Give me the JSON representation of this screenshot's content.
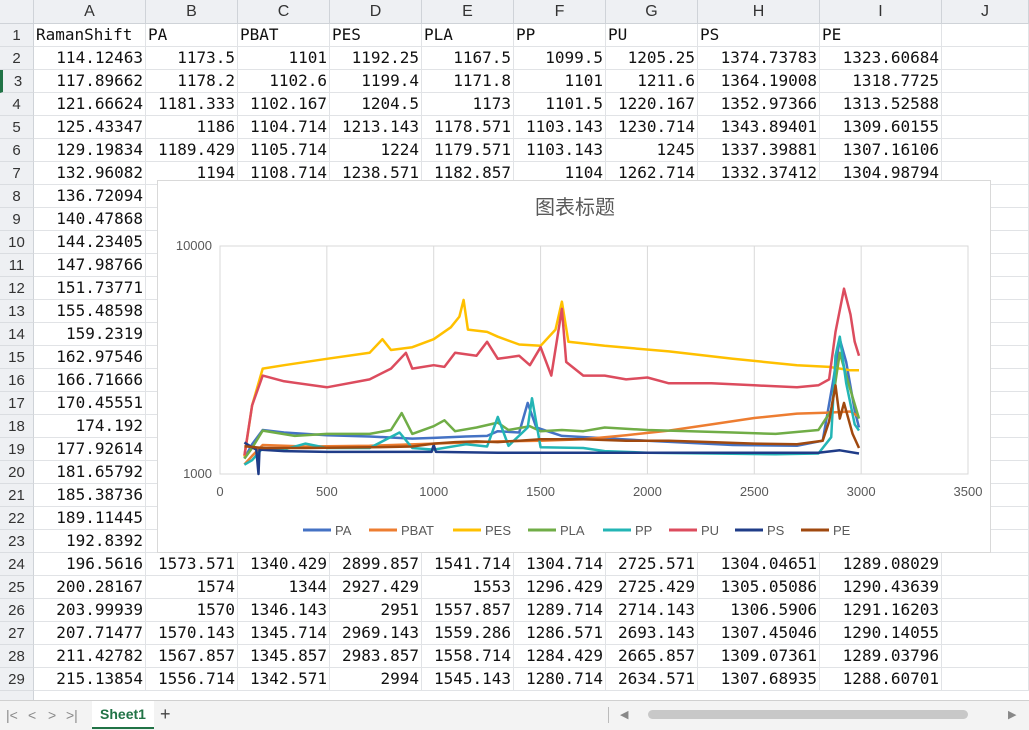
{
  "columns": [
    "A",
    "B",
    "C",
    "D",
    "E",
    "F",
    "G",
    "H",
    "I",
    "J"
  ],
  "header_row": [
    "RamanShift",
    "PA",
    "PBAT",
    "PES",
    "PLA",
    "PP",
    "PU",
    "PS",
    "PE"
  ],
  "rows": [
    {
      "n": "2",
      "v": [
        "114.12463",
        "1173.5",
        "1101",
        "1192.25",
        "1167.5",
        "1099.5",
        "1205.25",
        "1374.73783",
        "1323.60684"
      ]
    },
    {
      "n": "3",
      "v": [
        "117.89662",
        "1178.2",
        "1102.6",
        "1199.4",
        "1171.8",
        "1101",
        "1211.6",
        "1364.19008",
        "1318.7725"
      ]
    },
    {
      "n": "4",
      "v": [
        "121.66624",
        "1181.333",
        "1102.167",
        "1204.5",
        "1173",
        "1101.5",
        "1220.167",
        "1352.97366",
        "1313.52588"
      ]
    },
    {
      "n": "5",
      "v": [
        "125.43347",
        "1186",
        "1104.714",
        "1213.143",
        "1178.571",
        "1103.143",
        "1230.714",
        "1343.89401",
        "1309.60155"
      ]
    },
    {
      "n": "6",
      "v": [
        "129.19834",
        "1189.429",
        "1105.714",
        "1224",
        "1179.571",
        "1103.143",
        "1245",
        "1337.39881",
        "1307.16106"
      ]
    },
    {
      "n": "7",
      "v": [
        "132.96082",
        "1194",
        "1108.714",
        "1238.571",
        "1182.857",
        "1104",
        "1262.714",
        "1332.37412",
        "1304.98794"
      ]
    },
    {
      "n": "8",
      "v": [
        "136.72094"
      ]
    },
    {
      "n": "9",
      "v": [
        "140.47868"
      ]
    },
    {
      "n": "10",
      "v": [
        "144.23405"
      ]
    },
    {
      "n": "11",
      "v": [
        "147.98766"
      ]
    },
    {
      "n": "12",
      "v": [
        "151.73771"
      ]
    },
    {
      "n": "13",
      "v": [
        "155.48598"
      ]
    },
    {
      "n": "14",
      "v": [
        "159.2319"
      ]
    },
    {
      "n": "15",
      "v": [
        "162.97546"
      ]
    },
    {
      "n": "16",
      "v": [
        "166.71666"
      ]
    },
    {
      "n": "17",
      "v": [
        "170.45551"
      ]
    },
    {
      "n": "18",
      "v": [
        "174.192"
      ]
    },
    {
      "n": "19",
      "v": [
        "177.92614"
      ]
    },
    {
      "n": "20",
      "v": [
        "181.65792"
      ]
    },
    {
      "n": "21",
      "v": [
        "185.38736"
      ]
    },
    {
      "n": "22",
      "v": [
        "189.11445"
      ]
    },
    {
      "n": "23",
      "v": [
        "192.8392"
      ]
    },
    {
      "n": "24",
      "v": [
        "196.5616",
        "1573.571",
        "1340.429",
        "2899.857",
        "1541.714",
        "1304.714",
        "2725.571",
        "1304.04651",
        "1289.08029"
      ]
    },
    {
      "n": "25",
      "v": [
        "200.28167",
        "1574",
        "1344",
        "2927.429",
        "1553",
        "1296.429",
        "2725.429",
        "1305.05086",
        "1290.43639"
      ]
    },
    {
      "n": "26",
      "v": [
        "203.99939",
        "1570",
        "1346.143",
        "2951",
        "1557.857",
        "1289.714",
        "2714.143",
        "1306.5906",
        "1291.16203"
      ]
    },
    {
      "n": "27",
      "v": [
        "207.71477",
        "1570.143",
        "1345.714",
        "2969.143",
        "1559.286",
        "1286.571",
        "2693.143",
        "1307.45046",
        "1290.14055"
      ]
    },
    {
      "n": "28",
      "v": [
        "211.42782",
        "1567.857",
        "1345.857",
        "2983.857",
        "1558.714",
        "1284.429",
        "2665.857",
        "1309.07361",
        "1289.03796"
      ]
    },
    {
      "n": "29",
      "v": [
        "215.13854",
        "1556.714",
        "1342.571",
        "2994",
        "1545.143",
        "1280.714",
        "2634.571",
        "1307.68935",
        "1288.60701"
      ]
    }
  ],
  "chart": {
    "title": "图表标题",
    "chart_data": {
      "type": "line",
      "title": "图表标题",
      "xlabel": "",
      "ylabel": "",
      "xlim": [
        0,
        3500
      ],
      "ylim": [
        1000,
        10000
      ],
      "y_scale": "log",
      "x_ticks": [
        "0",
        "500",
        "1000",
        "1500",
        "2000",
        "2500",
        "3000",
        "3500"
      ],
      "y_ticks": [
        "1000",
        "10000"
      ],
      "grid": "vertical",
      "legend": "bottom",
      "series": [
        {
          "name": "PA",
          "color": "#4472c4",
          "points": [
            [
              114,
              1173
            ],
            [
              150,
              1350
            ],
            [
              200,
              1560
            ],
            [
              300,
              1520
            ],
            [
              500,
              1480
            ],
            [
              700,
              1460
            ],
            [
              900,
              1430
            ],
            [
              1000,
              1440
            ],
            [
              1150,
              1460
            ],
            [
              1250,
              1470
            ],
            [
              1300,
              1540
            ],
            [
              1400,
              1520
            ],
            [
              1440,
              2050
            ],
            [
              1480,
              1600
            ],
            [
              1600,
              1470
            ],
            [
              2000,
              1400
            ],
            [
              2400,
              1340
            ],
            [
              2700,
              1330
            ],
            [
              2820,
              1400
            ],
            [
              2870,
              2600
            ],
            [
              2900,
              3900
            ],
            [
              2930,
              3100
            ],
            [
              2970,
              1900
            ],
            [
              2990,
              1600
            ]
          ]
        },
        {
          "name": "PBAT",
          "color": "#ed7d31",
          "points": [
            [
              114,
              1101
            ],
            [
              150,
              1200
            ],
            [
              200,
              1340
            ],
            [
              400,
              1320
            ],
            [
              700,
              1330
            ],
            [
              1000,
              1360
            ],
            [
              1300,
              1390
            ],
            [
              1500,
              1400
            ],
            [
              1700,
              1420
            ],
            [
              1900,
              1480
            ],
            [
              2100,
              1550
            ],
            [
              2300,
              1650
            ],
            [
              2500,
              1760
            ],
            [
              2700,
              1840
            ],
            [
              2850,
              1860
            ],
            [
              2950,
              1880
            ],
            [
              2990,
              1780
            ]
          ]
        },
        {
          "name": "PES",
          "color": "#ffc000",
          "points": [
            [
              114,
              1192
            ],
            [
              150,
              2000
            ],
            [
              200,
              2900
            ],
            [
              300,
              3000
            ],
            [
              500,
              3200
            ],
            [
              700,
              3400
            ],
            [
              760,
              3900
            ],
            [
              800,
              3500
            ],
            [
              900,
              3600
            ],
            [
              1000,
              3900
            ],
            [
              1080,
              4400
            ],
            [
              1120,
              4900
            ],
            [
              1140,
              5800
            ],
            [
              1160,
              4300
            ],
            [
              1250,
              4200
            ],
            [
              1300,
              4000
            ],
            [
              1400,
              3700
            ],
            [
              1500,
              3650
            ],
            [
              1570,
              4300
            ],
            [
              1600,
              5700
            ],
            [
              1630,
              3800
            ],
            [
              1800,
              3650
            ],
            [
              2100,
              3450
            ],
            [
              2400,
              3200
            ],
            [
              2700,
              3000
            ],
            [
              2850,
              2950
            ],
            [
              2950,
              2850
            ],
            [
              2990,
              2850
            ]
          ]
        },
        {
          "name": "PLA",
          "color": "#70ad47",
          "points": [
            [
              114,
              1167
            ],
            [
              150,
              1300
            ],
            [
              200,
              1550
            ],
            [
              350,
              1470
            ],
            [
              500,
              1500
            ],
            [
              700,
              1500
            ],
            [
              800,
              1560
            ],
            [
              850,
              1850
            ],
            [
              900,
              1500
            ],
            [
              1000,
              1620
            ],
            [
              1050,
              1720
            ],
            [
              1100,
              1540
            ],
            [
              1200,
              1600
            ],
            [
              1300,
              1680
            ],
            [
              1350,
              1560
            ],
            [
              1450,
              1620
            ],
            [
              1500,
              1540
            ],
            [
              1600,
              1560
            ],
            [
              1700,
              1540
            ],
            [
              1800,
              1600
            ],
            [
              2000,
              1560
            ],
            [
              2200,
              1540
            ],
            [
              2400,
              1520
            ],
            [
              2600,
              1500
            ],
            [
              2800,
              1560
            ],
            [
              2860,
              1900
            ],
            [
              2900,
              3400
            ],
            [
              2930,
              2700
            ],
            [
              2990,
              1750
            ]
          ]
        },
        {
          "name": "PP",
          "color": "#23b5b5",
          "points": [
            [
              114,
              1099
            ],
            [
              150,
              1150
            ],
            [
              200,
              1300
            ],
            [
              300,
              1280
            ],
            [
              400,
              1360
            ],
            [
              500,
              1300
            ],
            [
              700,
              1300
            ],
            [
              840,
              1520
            ],
            [
              900,
              1300
            ],
            [
              1000,
              1280
            ],
            [
              1150,
              1350
            ],
            [
              1250,
              1320
            ],
            [
              1300,
              1780
            ],
            [
              1350,
              1330
            ],
            [
              1440,
              1600
            ],
            [
              1460,
              2150
            ],
            [
              1500,
              1310
            ],
            [
              1700,
              1300
            ],
            [
              1800,
              1260
            ],
            [
              2000,
              1240
            ],
            [
              2300,
              1230
            ],
            [
              2600,
              1220
            ],
            [
              2800,
              1230
            ],
            [
              2860,
              1450
            ],
            [
              2880,
              3300
            ],
            [
              2900,
              4000
            ],
            [
              2930,
              2500
            ],
            [
              2970,
              1650
            ],
            [
              2990,
              1550
            ]
          ]
        },
        {
          "name": "PU",
          "color": "#dc4c5e",
          "points": [
            [
              114,
              1205
            ],
            [
              150,
              2000
            ],
            [
              200,
              2700
            ],
            [
              300,
              2550
            ],
            [
              500,
              2400
            ],
            [
              700,
              2600
            ],
            [
              800,
              2900
            ],
            [
              870,
              3400
            ],
            [
              900,
              2900
            ],
            [
              1000,
              3000
            ],
            [
              1050,
              2950
            ],
            [
              1100,
              3400
            ],
            [
              1200,
              3300
            ],
            [
              1250,
              3800
            ],
            [
              1300,
              3200
            ],
            [
              1400,
              3300
            ],
            [
              1450,
              3000
            ],
            [
              1500,
              3600
            ],
            [
              1550,
              2700
            ],
            [
              1600,
              5300
            ],
            [
              1620,
              3100
            ],
            [
              1700,
              2700
            ],
            [
              1800,
              2700
            ],
            [
              1900,
              2600
            ],
            [
              2000,
              2650
            ],
            [
              2100,
              2500
            ],
            [
              2300,
              2500
            ],
            [
              2500,
              2450
            ],
            [
              2700,
              2400
            ],
            [
              2800,
              2450
            ],
            [
              2850,
              2600
            ],
            [
              2880,
              4200
            ],
            [
              2920,
              6500
            ],
            [
              2950,
              5000
            ],
            [
              2970,
              3800
            ],
            [
              2990,
              3300
            ]
          ]
        },
        {
          "name": "PS",
          "color": "#1f3c88",
          "points": [
            [
              114,
              1374
            ],
            [
              150,
              1310
            ],
            [
              170,
              1280
            ],
            [
              180,
              1000
            ],
            [
              185,
              1280
            ],
            [
              300,
              1260
            ],
            [
              500,
              1250
            ],
            [
              700,
              1250
            ],
            [
              900,
              1250
            ],
            [
              990,
              1250
            ],
            [
              1000,
              1340
            ],
            [
              1010,
              1250
            ],
            [
              1300,
              1240
            ],
            [
              1600,
              1240
            ],
            [
              1900,
              1240
            ],
            [
              2200,
              1240
            ],
            [
              2500,
              1240
            ],
            [
              2800,
              1240
            ],
            [
              2900,
              1270
            ],
            [
              2990,
              1230
            ]
          ]
        },
        {
          "name": "PE",
          "color": "#a0490f",
          "points": [
            [
              114,
              1323
            ],
            [
              200,
              1300
            ],
            [
              400,
              1300
            ],
            [
              700,
              1310
            ],
            [
              900,
              1320
            ],
            [
              1000,
              1360
            ],
            [
              1100,
              1380
            ],
            [
              1200,
              1390
            ],
            [
              1300,
              1380
            ],
            [
              1400,
              1400
            ],
            [
              1500,
              1420
            ],
            [
              1700,
              1420
            ],
            [
              1900,
              1400
            ],
            [
              2100,
              1400
            ],
            [
              2300,
              1380
            ],
            [
              2500,
              1360
            ],
            [
              2700,
              1350
            ],
            [
              2820,
              1400
            ],
            [
              2850,
              1700
            ],
            [
              2880,
              2450
            ],
            [
              2900,
              1750
            ],
            [
              2920,
              2050
            ],
            [
              2960,
              1500
            ],
            [
              2990,
              1300
            ]
          ]
        }
      ]
    }
  },
  "sheet": {
    "tab": "Sheet1",
    "add": "+"
  },
  "nav": {
    "first": "|<",
    "prev": "<",
    "next": ">",
    "last": ">|"
  }
}
